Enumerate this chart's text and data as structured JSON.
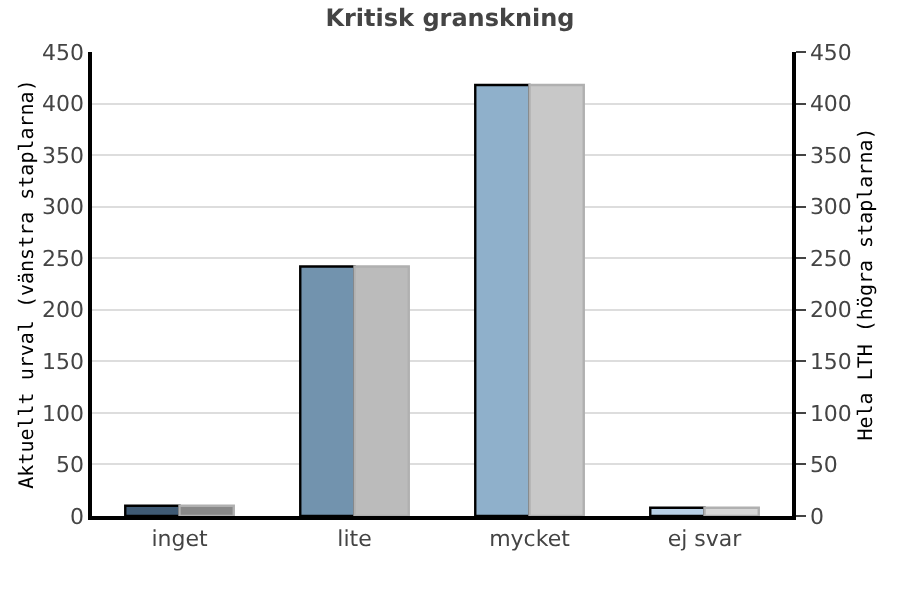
{
  "chart_data": {
    "type": "bar",
    "title": "Kritisk granskning",
    "ylabel": "Aktuellt urval (vänstra staplarna)",
    "y2label": "Hela LTH (högra staplarna)",
    "categories": [
      "inget",
      "lite",
      "mycket",
      "ej svar"
    ],
    "series": [
      {
        "colors": [
          "#3f5a74",
          "#7293ae",
          "#8fb0cb",
          "#b8d0e6"
        ],
        "values": [
          10,
          242,
          418,
          8
        ]
      },
      {
        "colors": [
          "#888888",
          "#bbbbbb",
          "#c8c8c8",
          "#d8d8d8"
        ],
        "values": [
          10,
          242,
          418,
          8
        ],
        "axis": "y2"
      }
    ],
    "ylim": [
      0,
      450
    ],
    "yticks": [
      0,
      50,
      100,
      150,
      200,
      250,
      300,
      350,
      400,
      450
    ],
    "y2lim": [
      0,
      450
    ],
    "y2ticks": [
      0,
      50,
      100,
      150,
      200,
      250,
      300,
      350,
      400,
      450
    ],
    "grid": "y"
  }
}
